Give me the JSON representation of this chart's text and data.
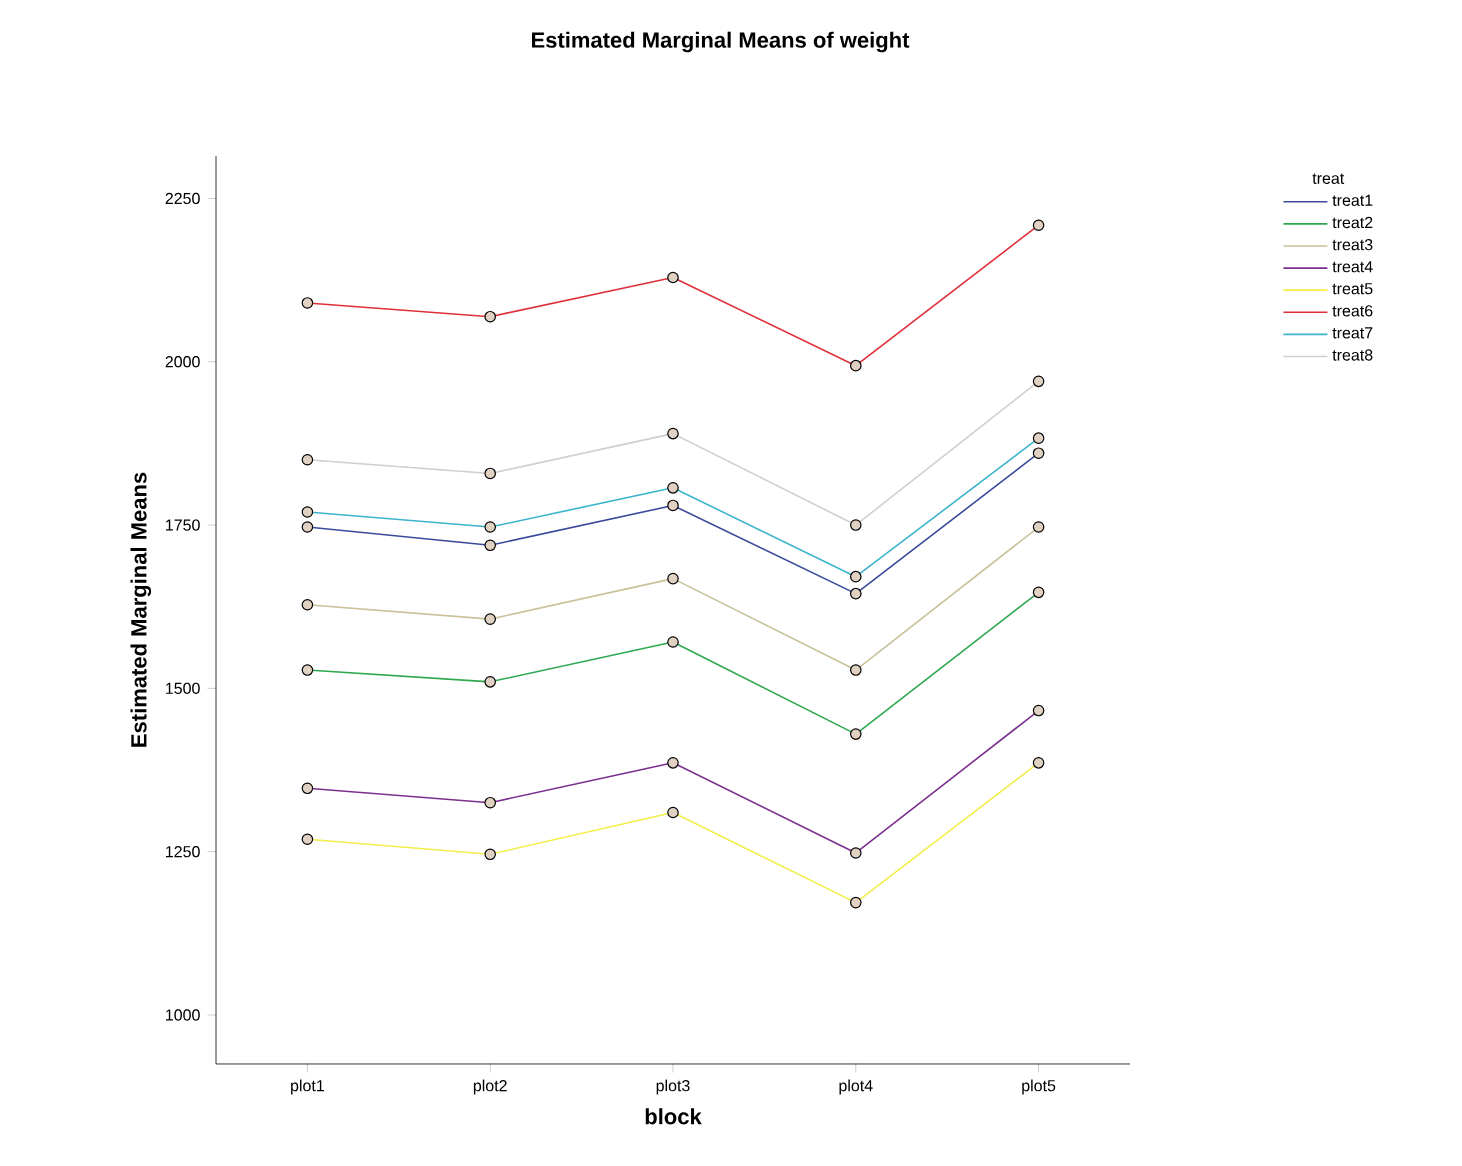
{
  "chart_data": {
    "type": "line",
    "title": "Estimated Marginal Means of weight",
    "xlabel": "block",
    "ylabel": "Estimated Marginal Means",
    "legend_title": "treat",
    "categories": [
      "plot1",
      "plot2",
      "plot3",
      "plot4",
      "plot5"
    ],
    "ylim": [
      925,
      2315
    ],
    "yticks": [
      1000,
      1250,
      1500,
      1750,
      2000,
      2250
    ],
    "grid": false,
    "legend": "right",
    "marker": "circle",
    "line_style": "solid",
    "series": [
      {
        "name": "treat1",
        "color": "#3b4a9b",
        "values": [
          1747,
          1719,
          1780,
          1645,
          1860
        ]
      },
      {
        "name": "treat2",
        "color": "#2ea84f",
        "values": [
          1528,
          1510,
          1571,
          1430,
          1647
        ]
      },
      {
        "name": "treat3",
        "color": "#c9c29a",
        "values": [
          1628,
          1606,
          1668,
          1528,
          1747
        ]
      },
      {
        "name": "treat4",
        "color": "#7b2f8e",
        "values": [
          1347,
          1325,
          1386,
          1248,
          1466
        ]
      },
      {
        "name": "treat5",
        "color": "#f2ee4a",
        "values": [
          1269,
          1246,
          1310,
          1172,
          1386
        ]
      },
      {
        "name": "treat6",
        "color": "#e0303a",
        "values": [
          2090,
          2069,
          2129,
          1994,
          2209
        ]
      },
      {
        "name": "treat7",
        "color": "#3bb4cc",
        "values": [
          1770,
          1747,
          1807,
          1671,
          1883
        ]
      },
      {
        "name": "treat8",
        "color": "#cfcfcf",
        "values": [
          1850,
          1829,
          1890,
          1750,
          1970
        ]
      }
    ]
  }
}
